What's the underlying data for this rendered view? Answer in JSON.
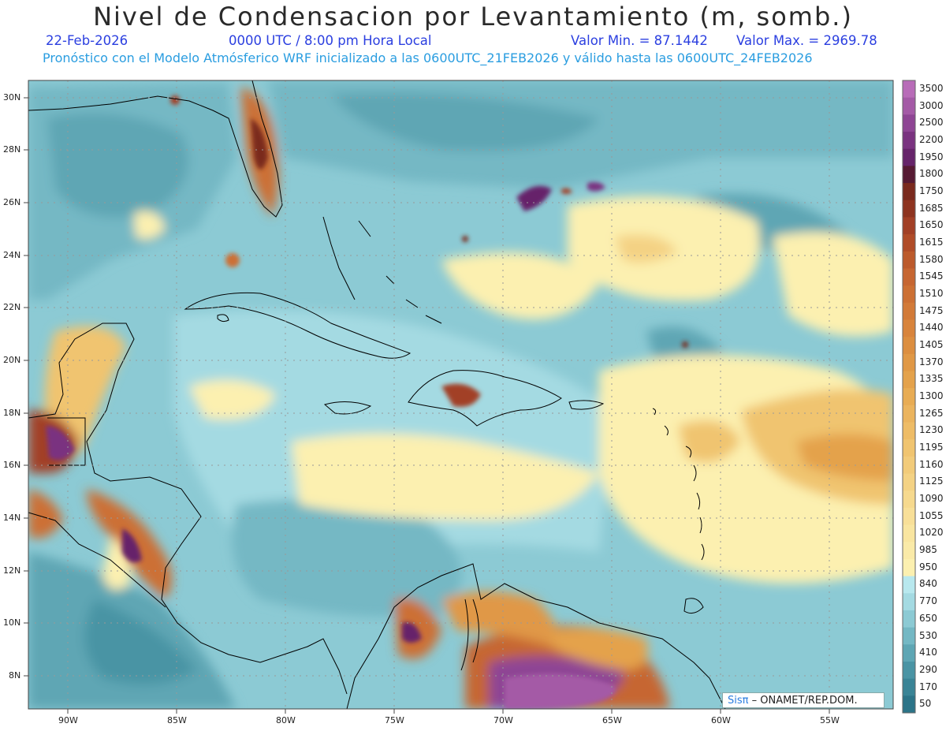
{
  "header": {
    "title": "Nivel de Condensacion por Levantamiento (m, somb.)",
    "date": "22-Feb-2026",
    "time": "0000 UTC / 8:00 pm Hora Local",
    "min_label": "Valor Min. = 87.1442",
    "max_label": "Valor Max. = 2969.78",
    "model_line": "Pronóstico con el Modelo Atmósferico WRF inicializado a las 0600UTC_21FEB2026 y válido hasta las  0600UTC_24FEB2026"
  },
  "map": {
    "lat_labels": [
      "30N",
      "28N",
      "26N",
      "24N",
      "22N",
      "20N",
      "18N",
      "16N",
      "14N",
      "12N",
      "10N",
      "8N"
    ],
    "lon_labels": [
      "90W",
      "85W",
      "80W",
      "75W",
      "70W",
      "65W",
      "60W",
      "55W"
    ],
    "extent": {
      "lon_min": -91.8,
      "lon_max": -51.9,
      "lat_min": 6.7,
      "lat_max": 30.6
    },
    "land_line_color": "#000000",
    "grid_color": "#999999"
  },
  "colorbar": {
    "levels": [
      {
        "label": "3500",
        "color": "#b86cb8"
      },
      {
        "label": "3000",
        "color": "#a45aa6"
      },
      {
        "label": "2500",
        "color": "#8e4594"
      },
      {
        "label": "2200",
        "color": "#7a3380"
      },
      {
        "label": "1950",
        "color": "#66246a"
      },
      {
        "label": "1800",
        "color": "#561a33"
      },
      {
        "label": "1750",
        "color": "#7a2a1e"
      },
      {
        "label": "1685",
        "color": "#8e3420"
      },
      {
        "label": "1650",
        "color": "#a24026"
      },
      {
        "label": "1615",
        "color": "#b04c28"
      },
      {
        "label": "1580",
        "color": "#bc5a2c"
      },
      {
        "label": "1545",
        "color": "#c66632"
      },
      {
        "label": "1510",
        "color": "#cc7034"
      },
      {
        "label": "1475",
        "color": "#d27a38"
      },
      {
        "label": "1440",
        "color": "#d8843c"
      },
      {
        "label": "1405",
        "color": "#dc8e40"
      },
      {
        "label": "1370",
        "color": "#e09846"
      },
      {
        "label": "1335",
        "color": "#e4a24c"
      },
      {
        "label": "1300",
        "color": "#e8ac54"
      },
      {
        "label": "1265",
        "color": "#ebb45e"
      },
      {
        "label": "1230",
        "color": "#eebc66"
      },
      {
        "label": "1195",
        "color": "#f0c470"
      },
      {
        "label": "1160",
        "color": "#f2cb7a"
      },
      {
        "label": "1125",
        "color": "#f4d284"
      },
      {
        "label": "1090",
        "color": "#f6d98e"
      },
      {
        "label": "1055",
        "color": "#f8df98"
      },
      {
        "label": "1020",
        "color": "#f9e5a0"
      },
      {
        "label": "985",
        "color": "#faeaa8"
      },
      {
        "label": "950",
        "color": "#fcf0b0"
      },
      {
        "label": "840",
        "color": "#b8e8ee"
      },
      {
        "label": "770",
        "color": "#a4dae2"
      },
      {
        "label": "650",
        "color": "#8ccad4"
      },
      {
        "label": "530",
        "color": "#74b8c4"
      },
      {
        "label": "410",
        "color": "#5ea6b4"
      },
      {
        "label": "290",
        "color": "#4a94a4"
      },
      {
        "label": "170",
        "color": "#3a8496"
      },
      {
        "label": "50",
        "color": "#2c7488"
      }
    ]
  },
  "credit": {
    "logo": "Sisπ",
    "text": "– ONAMET/REP.DOM."
  }
}
